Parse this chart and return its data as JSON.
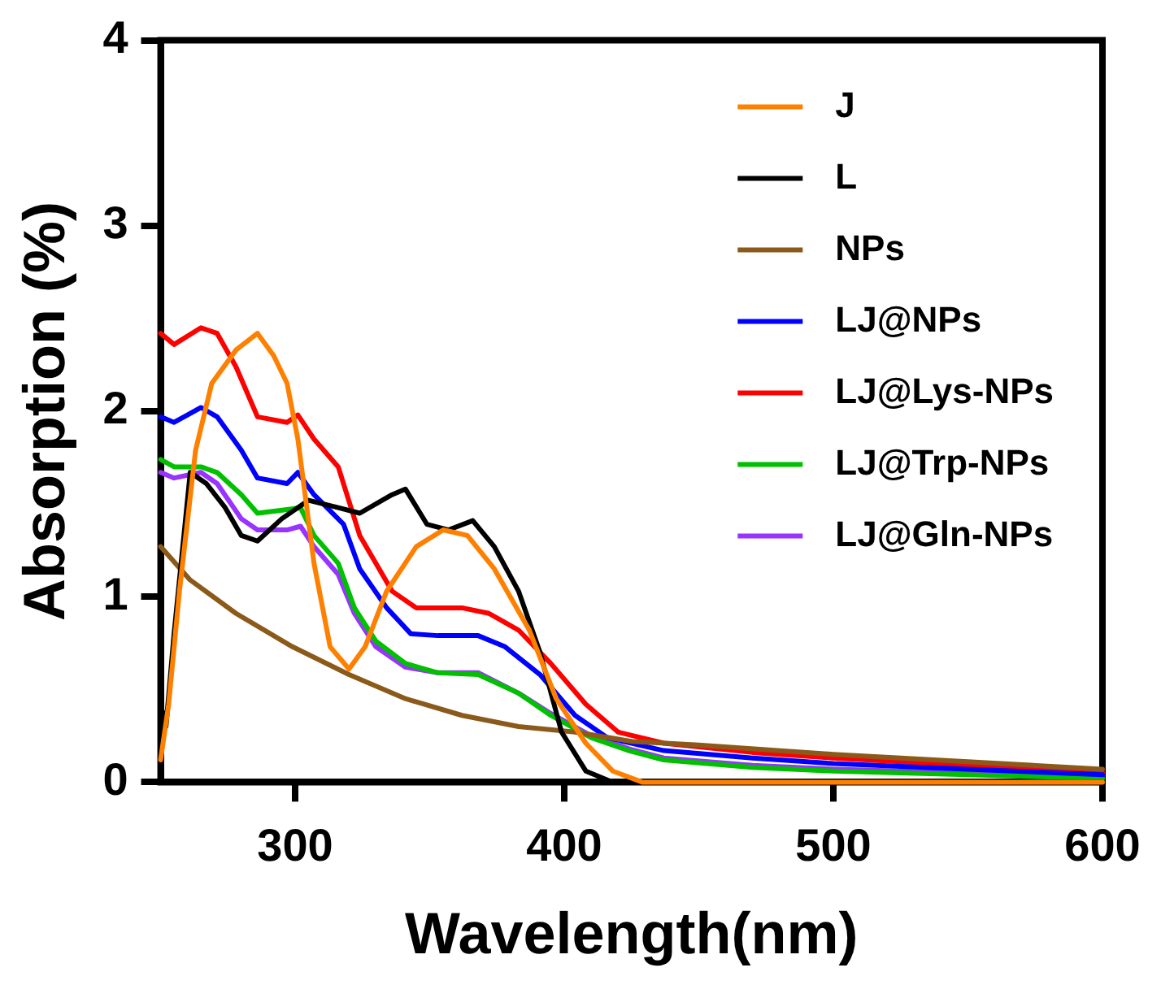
{
  "chart_data": {
    "type": "line",
    "xlabel": "Wavelength(nm)",
    "ylabel": "Absorption (%)",
    "xlim": [
      250,
      600
    ],
    "ylim": [
      0,
      4
    ],
    "xticks": [
      300,
      400,
      500,
      600
    ],
    "yticks": [
      0,
      1,
      2,
      3,
      4
    ],
    "grid": false,
    "legend": "top right",
    "marker": "none",
    "line_style": "solid",
    "series": [
      {
        "name": "J",
        "color": "#ff8000",
        "x": [
          250,
          253,
          257,
          263,
          269,
          278,
          286,
          292,
          297,
          301,
          307,
          313,
          320,
          326,
          334,
          345,
          355,
          364,
          374,
          387,
          397,
          408,
          418,
          429,
          450,
          500,
          550,
          600
        ],
        "values": [
          0.12,
          0.42,
          1.03,
          1.79,
          2.15,
          2.33,
          2.42,
          2.3,
          2.15,
          1.85,
          1.18,
          0.73,
          0.61,
          0.73,
          1.03,
          1.27,
          1.36,
          1.33,
          1.15,
          0.82,
          0.45,
          0.21,
          0.06,
          0,
          0,
          0,
          0,
          0
        ]
      },
      {
        "name": "L",
        "color": "#000000",
        "x": [
          250,
          252,
          255,
          261,
          267,
          274,
          280,
          286,
          295,
          305,
          316,
          324,
          336,
          341,
          349,
          357,
          366,
          374,
          383,
          391,
          399,
          408,
          418,
          450,
          500,
          550,
          600
        ],
        "values": [
          0.42,
          0.3,
          0.8,
          1.67,
          1.61,
          1.48,
          1.33,
          1.3,
          1.42,
          1.52,
          1.48,
          1.45,
          1.55,
          1.58,
          1.39,
          1.36,
          1.41,
          1.27,
          1.03,
          0.7,
          0.27,
          0.06,
          0,
          0,
          0,
          0,
          0
        ]
      },
      {
        "name": "NPs",
        "color": "#8b5a1a",
        "x": [
          250,
          261,
          278,
          299,
          320,
          341,
          362,
          383,
          404,
          425,
          450,
          500,
          550,
          600
        ],
        "values": [
          1.27,
          1.09,
          0.91,
          0.73,
          0.58,
          0.45,
          0.36,
          0.3,
          0.27,
          0.22,
          0.2,
          0.15,
          0.11,
          0.07
        ]
      },
      {
        "name": "LJ@NPs",
        "color": "#0000ff",
        "x": [
          250,
          255,
          265,
          271,
          280,
          286,
          297,
          301,
          307,
          318,
          324,
          334,
          343,
          353,
          368,
          378,
          391,
          404,
          416,
          437,
          470,
          500,
          550,
          600
        ],
        "values": [
          1.97,
          1.94,
          2.02,
          1.97,
          1.79,
          1.64,
          1.61,
          1.67,
          1.55,
          1.39,
          1.15,
          0.94,
          0.8,
          0.79,
          0.79,
          0.73,
          0.58,
          0.36,
          0.24,
          0.17,
          0.13,
          0.1,
          0.07,
          0.04
        ]
      },
      {
        "name": "LJ@Lys-NPs",
        "color": "#ff0000",
        "x": [
          250,
          255,
          265,
          271,
          278,
          286,
          297,
          301,
          307,
          316,
          324,
          336,
          345,
          362,
          372,
          383,
          395,
          408,
          420,
          437,
          470,
          500,
          550,
          600
        ],
        "values": [
          2.42,
          2.36,
          2.45,
          2.42,
          2.24,
          1.97,
          1.94,
          1.98,
          1.85,
          1.7,
          1.33,
          1.03,
          0.94,
          0.94,
          0.91,
          0.82,
          0.64,
          0.42,
          0.27,
          0.21,
          0.16,
          0.13,
          0.09,
          0.05
        ]
      },
      {
        "name": "LJ@Trp-NPs",
        "color": "#00c000",
        "x": [
          250,
          255,
          265,
          271,
          280,
          286,
          297,
          302,
          307,
          316,
          322,
          330,
          341,
          353,
          368,
          383,
          395,
          410,
          424,
          437,
          470,
          500,
          550,
          600
        ],
        "values": [
          1.74,
          1.7,
          1.7,
          1.67,
          1.55,
          1.45,
          1.47,
          1.48,
          1.33,
          1.18,
          0.94,
          0.76,
          0.64,
          0.59,
          0.58,
          0.48,
          0.36,
          0.24,
          0.17,
          0.12,
          0.08,
          0.06,
          0.04,
          0.02
        ]
      },
      {
        "name": "LJ@Gln-NPs",
        "color": "#9933ff",
        "x": [
          250,
          255,
          265,
          271,
          280,
          286,
          297,
          302,
          307,
          316,
          322,
          330,
          341,
          353,
          368,
          383,
          395,
          410,
          424,
          437,
          470,
          500,
          550,
          600
        ],
        "values": [
          1.67,
          1.64,
          1.67,
          1.61,
          1.42,
          1.36,
          1.36,
          1.38,
          1.27,
          1.12,
          0.91,
          0.73,
          0.62,
          0.59,
          0.59,
          0.48,
          0.37,
          0.25,
          0.18,
          0.13,
          0.09,
          0.07,
          0.05,
          0.04
        ]
      }
    ]
  }
}
